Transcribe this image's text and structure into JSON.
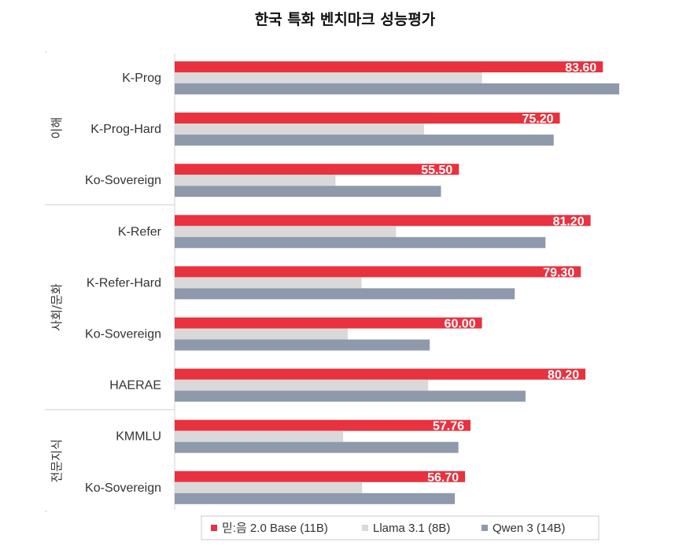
{
  "chart_data": {
    "type": "bar",
    "orientation": "horizontal",
    "title": "한국 특화 벤치마크 성능평가",
    "xlabel": "",
    "ylabel": "",
    "xlim": [
      0,
      100
    ],
    "grid": false,
    "groups": [
      {
        "name": "이해",
        "categories": [
          "K-Prog",
          "K-Prog-Hard",
          "Ko-Sovereign"
        ]
      },
      {
        "name": "사회/문화",
        "categories": [
          "K-Refer",
          "K-Refer-Hard",
          "Ko-Sovereign",
          "HAERAE"
        ]
      },
      {
        "name": "전문지식",
        "categories": [
          "KMMLU",
          "Ko-Sovereign"
        ]
      }
    ],
    "categories": [
      "K-Prog",
      "K-Prog-Hard",
      "Ko-Sovereign",
      "K-Refer",
      "K-Refer-Hard",
      "Ko-Sovereign",
      "HAERAE",
      "KMMLU",
      "Ko-Sovereign"
    ],
    "series": [
      {
        "name": "믿:음 2.0 Base (11B)",
        "color": "#e8323f",
        "values": [
          83.6,
          75.2,
          55.5,
          81.2,
          79.3,
          60.0,
          80.2,
          57.76,
          56.7
        ],
        "labels": [
          "83.60",
          "75.20",
          "55.50",
          "81.20",
          "79.30",
          "60.00",
          "80.20",
          "57.76",
          "56.70"
        ]
      },
      {
        "name": "Llama 3.1 (8B)",
        "color": "#d9d9d9",
        "values": [
          60.0,
          48.7,
          31.4,
          43.2,
          36.5,
          33.8,
          49.5,
          32.9,
          36.6
        ]
      },
      {
        "name": "Qwen 3 (14B)",
        "color": "#8e99ab",
        "values": [
          86.8,
          74.0,
          52.0,
          72.4,
          66.4,
          49.8,
          68.5,
          55.4,
          54.7
        ]
      }
    ],
    "legend_position": "bottom-center"
  }
}
